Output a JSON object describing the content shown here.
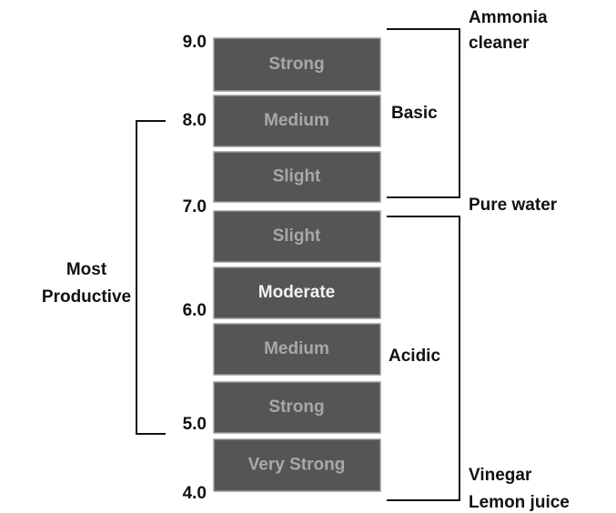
{
  "scale_labels": [
    "9.0",
    "8.0",
    "7.0",
    "6.0",
    "5.0",
    "4.0"
  ],
  "levels": [
    "Strong",
    "Medium",
    "Slight",
    "Slight",
    "Moderate",
    "Medium",
    "Strong",
    "Very Strong"
  ],
  "groups": {
    "basic": "Basic",
    "acidic": "Acidic",
    "most_productive": [
      "Most",
      "Productive"
    ]
  },
  "examples": {
    "top": [
      "Ammonia",
      "cleaner"
    ],
    "neutral": "Pure water",
    "bottom": [
      "Vinegar",
      "Lemon juice"
    ]
  }
}
